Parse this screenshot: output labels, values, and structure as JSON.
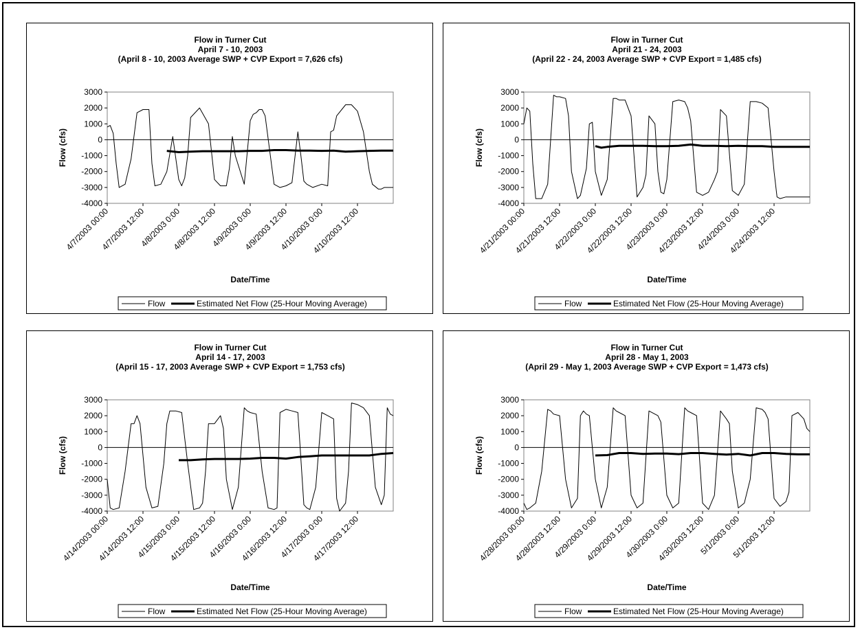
{
  "chart_data": [
    {
      "type": "line",
      "title_lines": [
        "Flow in Turner Cut",
        "April 7 - 10, 2003",
        "(April 8 - 10, 2003 Average SWP + CVP Export = 7,626 cfs)"
      ],
      "xlabel": "Date/Time",
      "ylabel": "Flow (cfs)",
      "ylim": [
        -4000,
        3000
      ],
      "yticks": [
        3000,
        2000,
        1000,
        0,
        -1000,
        -2000,
        -3000,
        -4000
      ],
      "xlim": [
        0,
        96
      ],
      "x_unit": "hours from 4/7/2003 00:00",
      "xtick_labels": [
        "4/7/2003 00:00",
        "4/7/2003 12:00",
        "4/8/2003 0:00",
        "4/8/2003 12:00",
        "4/9/2003 0:00",
        "4/9/2003 12:00",
        "4/10/2003 0:00",
        "4/10/2003 12:00"
      ],
      "legend": [
        "Flow",
        "Estimated Net Flow (25-Hour Moving Average)"
      ],
      "legend_position": "bottom",
      "series": [
        {
          "name": "Flow",
          "x": [
            0,
            1,
            2,
            3,
            4,
            6,
            8,
            10,
            12,
            14,
            15,
            16,
            18,
            20,
            22,
            24,
            25,
            26,
            27,
            28,
            31,
            34,
            36,
            38,
            40,
            41,
            42,
            43,
            46,
            48,
            49,
            50,
            51,
            52,
            53,
            56,
            58,
            60,
            62,
            64,
            65,
            66,
            67,
            69,
            72,
            74,
            75,
            76,
            77,
            80,
            82,
            84,
            86,
            88,
            89,
            91,
            92,
            93,
            95,
            96
          ],
          "y": [
            800,
            900,
            400,
            -1500,
            -3000,
            -2800,
            -1200,
            1700,
            1900,
            1900,
            -1500,
            -2900,
            -2800,
            -2000,
            200,
            -2500,
            -2900,
            -2400,
            -1000,
            1400,
            2000,
            1000,
            -2500,
            -2900,
            -2900,
            -1800,
            200,
            -1000,
            -2800,
            1200,
            1600,
            1700,
            1900,
            1900,
            1500,
            -2800,
            -3000,
            -2900,
            -2700,
            500,
            -1000,
            -2600,
            -2800,
            -3000,
            -2800,
            -2900,
            500,
            600,
            1500,
            2200,
            2200,
            1800,
            500,
            -2000,
            -2800,
            -3100,
            -3100,
            -3000,
            -3000,
            -3000
          ]
        },
        {
          "name": "Estimated Net Flow (25-Hour Moving Average)",
          "x": [
            20,
            24,
            28,
            32,
            36,
            40,
            44,
            48,
            52,
            56,
            60,
            64,
            68,
            72,
            76,
            80,
            84,
            88,
            92,
            96
          ],
          "y": [
            -700,
            -780,
            -750,
            -720,
            -720,
            -720,
            -720,
            -700,
            -700,
            -650,
            -650,
            -680,
            -680,
            -700,
            -680,
            -750,
            -720,
            -700,
            -680,
            -680
          ]
        }
      ]
    },
    {
      "type": "line",
      "title_lines": [
        "Flow in Turner Cut",
        "April 21 - 24, 2003",
        "(April 22 - 24, 2003 Average SWP + CVP Export = 1,485 cfs)"
      ],
      "xlabel": "Date/Time",
      "ylabel": "Flow (cfs)",
      "ylim": [
        -4000,
        3000
      ],
      "yticks": [
        3000,
        2000,
        1000,
        0,
        -1000,
        -2000,
        -3000,
        -4000
      ],
      "xlim": [
        0,
        96
      ],
      "x_unit": "hours from 4/21/2003 00:00",
      "xtick_labels": [
        "4/21/2003 00:00",
        "4/21/2003 12:00",
        "4/22/2003 0:00",
        "4/22/2003 12:00",
        "4/23/2003 0:00",
        "4/23/2003 12:00",
        "4/24/2003 0:00",
        "4/24/2003 12:00"
      ],
      "legend": [
        "Flow",
        "Estimated Net Flow (25-Hour Moving Average)"
      ],
      "legend_position": "bottom",
      "series": [
        {
          "name": "Flow",
          "x": [
            0,
            1,
            2,
            3,
            4,
            6,
            8,
            10,
            11,
            12,
            14,
            15,
            16,
            18,
            19,
            21,
            22,
            23,
            24,
            26,
            28,
            30,
            31,
            32,
            34,
            36,
            37,
            38,
            40,
            41,
            42,
            44,
            45,
            46,
            47,
            48,
            50,
            52,
            54,
            55,
            56,
            58,
            60,
            62,
            64,
            65,
            66,
            68,
            70,
            72,
            74,
            76,
            77,
            78,
            80,
            82,
            84,
            85,
            86,
            88,
            90,
            92,
            94,
            95,
            96
          ],
          "y": [
            1000,
            2000,
            1800,
            -1500,
            -3700,
            -3700,
            -2800,
            2800,
            2700,
            2700,
            2600,
            1500,
            -2000,
            -3700,
            -3500,
            -1800,
            1000,
            1100,
            -2000,
            -3500,
            -2500,
            2600,
            2600,
            2500,
            2500,
            1500,
            -1000,
            -3600,
            -3000,
            -2200,
            1500,
            1000,
            -2000,
            -3300,
            -3400,
            -2500,
            2400,
            2500,
            2400,
            2000,
            1200,
            -3300,
            -3500,
            -3300,
            -2500,
            -2000,
            1900,
            1500,
            -3200,
            -3500,
            -2800,
            2400,
            2400,
            2400,
            2300,
            2000,
            -2000,
            -3600,
            -3700,
            -3600,
            -3600,
            -3600,
            -3600,
            -3600,
            -3600
          ]
        },
        {
          "name": "Estimated Net Flow (25-Hour Moving Average)",
          "x": [
            24,
            26,
            28,
            32,
            36,
            40,
            44,
            48,
            52,
            56,
            60,
            64,
            68,
            72,
            76,
            80,
            84,
            88,
            92,
            96
          ],
          "y": [
            -400,
            -500,
            -450,
            -380,
            -380,
            -380,
            -400,
            -400,
            -380,
            -300,
            -380,
            -380,
            -400,
            -380,
            -400,
            -400,
            -450,
            -450,
            -450,
            -450
          ]
        }
      ]
    },
    {
      "type": "line",
      "title_lines": [
        "Flow in Turner Cut",
        "April 14 - 17, 2003",
        "(April 15 - 17, 2003 Average SWP + CVP Export = 1,753 cfs)"
      ],
      "xlabel": "Date/Time",
      "ylabel": "Flow (cfs)",
      "ylim": [
        -4000,
        3000
      ],
      "yticks": [
        3000,
        2000,
        1000,
        0,
        -1000,
        -2000,
        -3000,
        -4000
      ],
      "xlim": [
        0,
        96
      ],
      "x_unit": "hours from 4/14/2003 00:00",
      "xtick_labels": [
        "4/14/2003 00:00",
        "4/14/2003 12:00",
        "4/15/2003 0:00",
        "4/15/2003 12:00",
        "4/16/2003 0:00",
        "4/16/2003 12:00",
        "4/17/2003 0:00",
        "4/17/2003 12:00"
      ],
      "legend": [
        "Flow",
        "Estimated Net Flow (25-Hour Moving Average)"
      ],
      "legend_position": "bottom",
      "series": [
        {
          "name": "Flow",
          "x": [
            0,
            1,
            2,
            4,
            6,
            8,
            9,
            10,
            11,
            13,
            15,
            17,
            19,
            20,
            21,
            23,
            25,
            27,
            29,
            31,
            32,
            33,
            34,
            36,
            38,
            39,
            40,
            42,
            44,
            46,
            47,
            48,
            50,
            52,
            54,
            56,
            57,
            58,
            60,
            62,
            64,
            66,
            67,
            68,
            70,
            72,
            74,
            76,
            77,
            78,
            80,
            81,
            82,
            84,
            86,
            88,
            90,
            92,
            93,
            94,
            95,
            96
          ],
          "y": [
            -2000,
            -3800,
            -3900,
            -3800,
            -1500,
            1500,
            1500,
            2000,
            1500,
            -2500,
            -3800,
            -3700,
            -1000,
            1500,
            2300,
            2300,
            2200,
            -1000,
            -3900,
            -3800,
            -3500,
            -1500,
            1500,
            1500,
            2000,
            1200,
            -2000,
            -3900,
            -2500,
            2500,
            2300,
            2200,
            2100,
            -1500,
            -3800,
            -3900,
            -3800,
            2200,
            2400,
            2300,
            2200,
            -3600,
            -3800,
            -3900,
            -2500,
            2200,
            2000,
            1800,
            -3200,
            -4000,
            -3500,
            -1500,
            2800,
            2700,
            2500,
            2000,
            -2500,
            -3600,
            -3000,
            2500,
            2100,
            2000
          ]
        },
        {
          "name": "Estimated Net Flow (25-Hour Moving Average)",
          "x": [
            24,
            28,
            32,
            36,
            40,
            44,
            48,
            52,
            56,
            60,
            64,
            68,
            72,
            76,
            80,
            84,
            88,
            92,
            96
          ],
          "y": [
            -800,
            -800,
            -750,
            -720,
            -720,
            -720,
            -700,
            -650,
            -650,
            -700,
            -600,
            -550,
            -500,
            -500,
            -500,
            -500,
            -500,
            -400,
            -350
          ]
        }
      ]
    },
    {
      "type": "line",
      "title_lines": [
        "Flow in Turner Cut",
        "April 28 - May 1, 2003",
        "(April 29 - May 1, 2003 Average SWP + CVP Export = 1,473 cfs)"
      ],
      "xlabel": "Date/Time",
      "ylabel": "Flow (cfs)",
      "ylim": [
        -4000,
        3000
      ],
      "yticks": [
        3000,
        2000,
        1000,
        0,
        -1000,
        -2000,
        -3000,
        -4000
      ],
      "xlim": [
        0,
        96
      ],
      "x_unit": "hours from 4/28/2003 00:00",
      "xtick_labels": [
        "4/28/2003 00:00",
        "4/28/2003 12:00",
        "4/29/2003 0:00",
        "4/29/2003 12:00",
        "4/30/2003 0:00",
        "4/30/2003 12:00",
        "5/1/2003 0:00",
        "5/1/2003 12:00"
      ],
      "legend": [
        "Flow",
        "Estimated Net Flow (25-Hour Moving Average)"
      ],
      "legend_position": "bottom",
      "series": [
        {
          "name": "Flow",
          "x": [
            0,
            1,
            2,
            4,
            6,
            8,
            9,
            10,
            12,
            14,
            16,
            18,
            19,
            20,
            21,
            22,
            24,
            26,
            28,
            30,
            31,
            32,
            34,
            36,
            38,
            40,
            42,
            44,
            45,
            46,
            48,
            50,
            52,
            54,
            55,
            56,
            58,
            60,
            62,
            64,
            66,
            68,
            69,
            70,
            72,
            74,
            76,
            78,
            80,
            81,
            82,
            84,
            86,
            88,
            89,
            90,
            92,
            94,
            95,
            96
          ],
          "y": [
            -3500,
            -3900,
            -3800,
            -3500,
            -1500,
            2400,
            2300,
            2100,
            2000,
            -2000,
            -3800,
            -3200,
            2000,
            2300,
            2100,
            2000,
            -2000,
            -3800,
            -2500,
            2500,
            2300,
            2200,
            2000,
            -3000,
            -3800,
            -3500,
            2300,
            2100,
            2000,
            1600,
            -3000,
            -3800,
            -3500,
            2500,
            2300,
            2200,
            2000,
            -3500,
            -3900,
            -3000,
            2300,
            1800,
            1500,
            -1500,
            -3800,
            -3500,
            -2000,
            2500,
            2400,
            2200,
            1800,
            -3200,
            -3700,
            -3400,
            -2800,
            2000,
            2200,
            1800,
            1200,
            1000
          ]
        },
        {
          "name": "Estimated Net Flow (25-Hour Moving Average)",
          "x": [
            24,
            28,
            32,
            36,
            40,
            44,
            48,
            52,
            56,
            60,
            64,
            68,
            72,
            76,
            80,
            84,
            88,
            92,
            96
          ],
          "y": [
            -500,
            -480,
            -350,
            -350,
            -400,
            -380,
            -380,
            -420,
            -350,
            -350,
            -400,
            -450,
            -400,
            -500,
            -350,
            -350,
            -400,
            -430,
            -430
          ]
        }
      ]
    }
  ]
}
